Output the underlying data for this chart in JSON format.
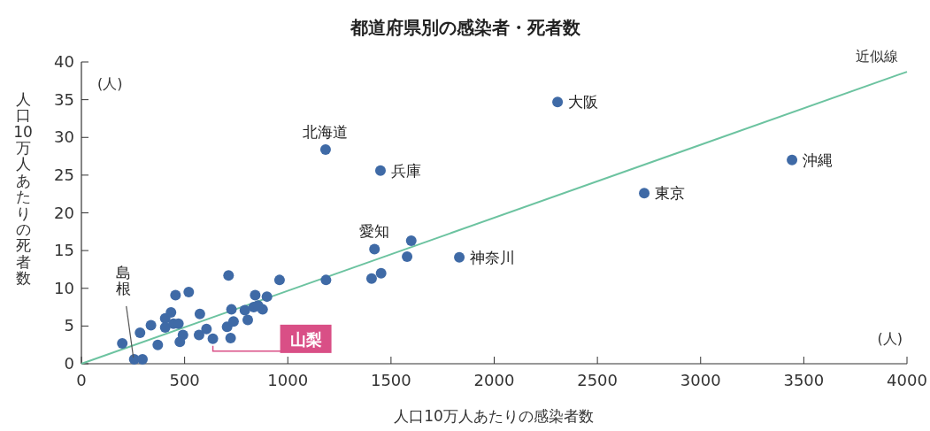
{
  "chart_data": {
    "type": "scatter",
    "title": "都道府県別の感染者・死者数",
    "xlabel": "人口10万人あたりの感染者数",
    "ylabel": "人口10万人あたりの死者数",
    "xlim": [
      0,
      4000
    ],
    "xticks": [
      0,
      500,
      1000,
      1500,
      2000,
      2500,
      3000,
      3500,
      4000
    ],
    "ylim": [
      0,
      40
    ],
    "yticks": [
      0,
      5,
      10,
      15,
      20,
      25,
      30,
      35,
      40
    ],
    "grid": false,
    "marker": "circle",
    "series": [
      {
        "color": "#3f6aa6",
        "x": [
          198,
          256,
          296,
          284,
          337,
          370,
          406,
          434,
          406,
          446,
          470,
          456,
          520,
          492,
          477,
          574,
          570,
          606,
          637,
          713,
          727,
          706,
          737,
          723,
          792,
          806,
          842,
          835,
          878,
          899,
          856,
          960,
          1185,
          1406,
          1452,
          1420,
          1578,
          1598,
          1831,
          1183,
          1449,
          2307,
          2727,
          3443
        ],
        "values": [
          2.7,
          0.6,
          0.6,
          4.1,
          5.1,
          2.5,
          6.0,
          6.8,
          4.8,
          5.3,
          5.3,
          9.1,
          9.5,
          3.8,
          2.9,
          6.6,
          3.8,
          4.6,
          3.3,
          11.7,
          7.2,
          4.9,
          5.6,
          3.4,
          7.1,
          5.8,
          9.1,
          7.5,
          7.2,
          8.9,
          7.7,
          11.1,
          11.1,
          11.3,
          12.0,
          15.2,
          14.2,
          16.3,
          14.1,
          28.4,
          25.6,
          34.7,
          22.6,
          27.0
        ]
      },
      {
        "type": "line",
        "marker": "none",
        "name": "近似線",
        "color": "#6cc3a0",
        "x": [
          0,
          4000
        ],
        "values": [
          0,
          38.7
        ]
      }
    ],
    "annotations": [
      "(人)",
      "(人)",
      {
        "text": "大阪",
        "x": 2307,
        "y": 34.7
      },
      {
        "text": "北海道",
        "x": 1183,
        "y": 28.4
      },
      {
        "text": "兵庫",
        "x": 1449,
        "y": 25.6
      },
      {
        "text": "沖縄",
        "x": 3443,
        "y": 27.0
      },
      {
        "text": "東京",
        "x": 2727,
        "y": 22.6
      },
      {
        "text": "愛知",
        "x": 1420,
        "y": 15.2
      },
      {
        "text": "神奈川",
        "x": 1831,
        "y": 14.1
      },
      {
        "text": "島根",
        "x": 256,
        "y": 0.6
      },
      {
        "text": "山梨",
        "x": 637,
        "y": 3.3
      }
    ]
  }
}
